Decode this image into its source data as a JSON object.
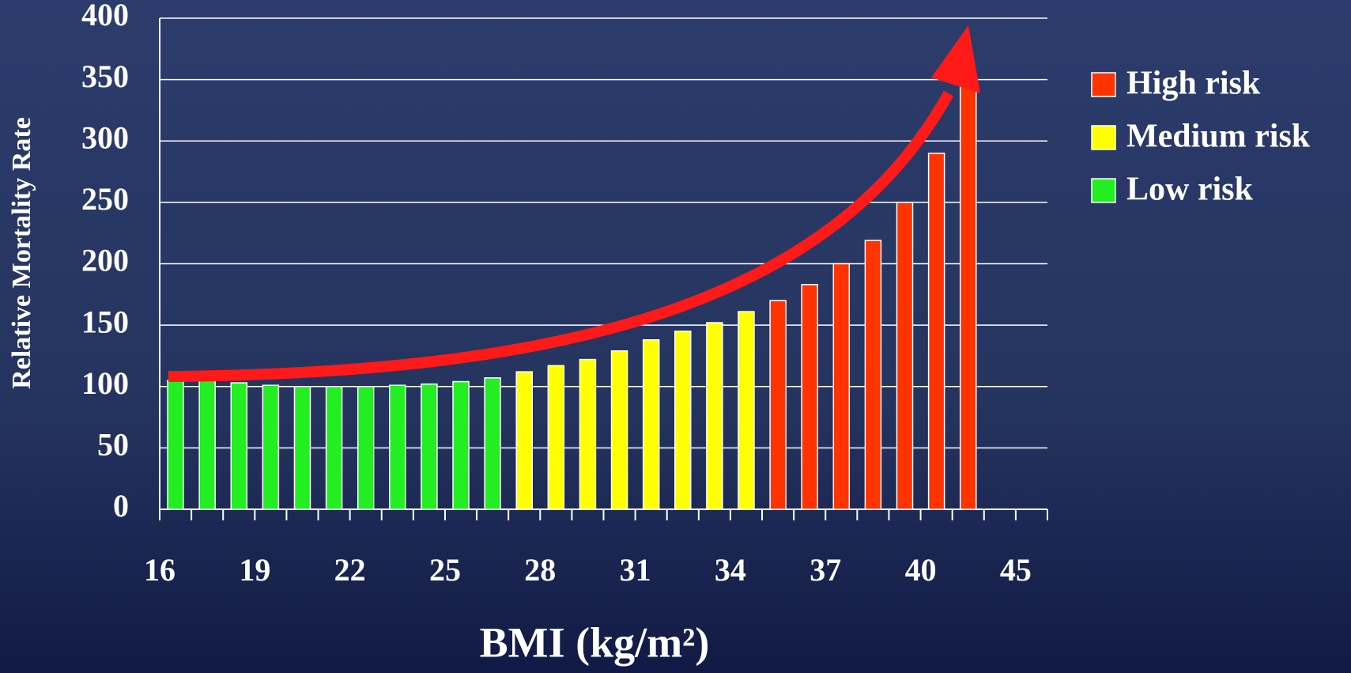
{
  "chart_data": {
    "type": "bar",
    "y_label": "Relative Mortality Rate",
    "x_label": "BMI (kg/m²)",
    "categories": [
      "16",
      null,
      null,
      "19",
      null,
      null,
      "22",
      null,
      null,
      "25",
      null,
      null,
      "28",
      null,
      null,
      "31",
      null,
      null,
      "34",
      null,
      null,
      "37",
      null,
      null,
      "40",
      null,
      null,
      "45"
    ],
    "series": [
      {
        "name": "High risk",
        "color": "#ff3300",
        "values": [
          null,
          null,
          null,
          null,
          null,
          null,
          null,
          null,
          null,
          null,
          null,
          null,
          null,
          null,
          null,
          null,
          null,
          null,
          null,
          170,
          183,
          200,
          219,
          250,
          290,
          350,
          null,
          null
        ]
      },
      {
        "name": "Medium risk",
        "color": "#ffff00",
        "values": [
          null,
          null,
          null,
          null,
          null,
          null,
          null,
          null,
          null,
          null,
          null,
          112,
          117,
          122,
          129,
          138,
          145,
          152,
          161,
          null,
          null,
          null,
          null,
          null,
          null,
          null,
          null,
          null
        ]
      },
      {
        "name": "Low risk",
        "color": "#22ee22",
        "values": [
          105,
          105,
          103,
          101,
          100,
          100,
          100,
          101,
          102,
          104,
          107,
          null,
          null,
          null,
          null,
          null,
          null,
          null,
          null,
          null,
          null,
          null,
          null,
          null,
          null,
          null,
          null,
          null
        ]
      }
    ],
    "ylim": [
      0,
      400
    ],
    "yticks": [
      0,
      50,
      100,
      150,
      200,
      250,
      300,
      350,
      400
    ],
    "grid": true
  }
}
